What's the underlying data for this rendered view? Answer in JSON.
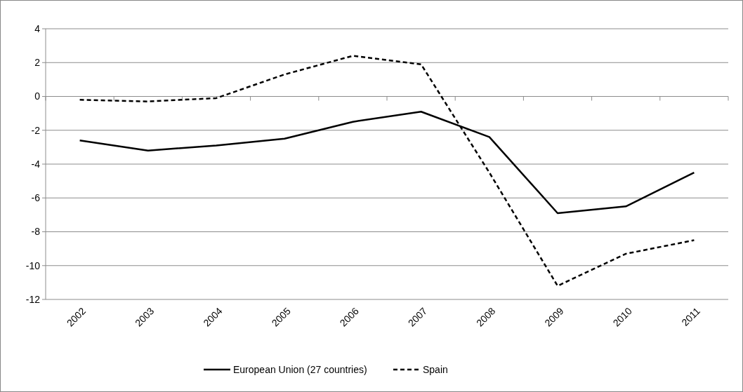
{
  "chart_data": {
    "type": "line",
    "categories": [
      "2002",
      "2003",
      "2004",
      "2005",
      "2006",
      "2007",
      "2008",
      "2009",
      "2010",
      "2011"
    ],
    "series": [
      {
        "name": "European Union (27 countries)",
        "color": "#000000",
        "line_style": "solid",
        "values": [
          -2.6,
          -3.2,
          -2.9,
          -2.5,
          -1.5,
          -0.9,
          -2.4,
          -6.9,
          -6.5,
          -4.5
        ]
      },
      {
        "name": "Spain",
        "color": "#000000",
        "line_style": "dashed",
        "values": [
          -0.2,
          -0.3,
          -0.1,
          1.3,
          2.4,
          1.9,
          -4.5,
          -11.2,
          -9.3,
          -8.5
        ]
      }
    ],
    "ylim": [
      -12,
      4
    ],
    "yticks": [
      -12,
      -10,
      -8,
      -6,
      -4,
      -2,
      0,
      2,
      4
    ],
    "grid": "y",
    "legend": "bottom",
    "marker": "none"
  }
}
